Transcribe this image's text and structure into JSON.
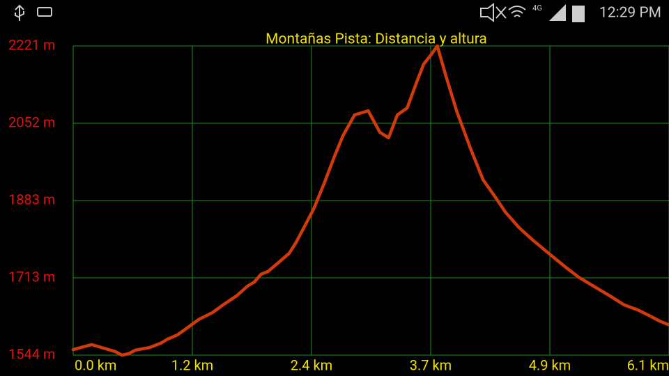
{
  "status_bar": {
    "network": "4G",
    "time": "12:29 PM"
  },
  "chart_data": {
    "type": "line",
    "title": "Montañas Pista: Distancia y altura",
    "x": [
      0,
      0.19,
      0.43,
      0.5,
      0.57,
      0.64,
      0.79,
      0.9,
      0.97,
      1.07,
      1.18,
      1.29,
      1.43,
      1.54,
      1.68,
      1.79,
      1.86,
      1.93,
      2.0,
      2.11,
      2.22,
      2.29,
      2.36,
      2.47,
      2.58,
      2.68,
      2.77,
      2.89,
      3.03,
      3.15,
      3.24,
      3.33,
      3.43,
      3.53,
      3.6,
      3.67,
      3.74,
      3.83,
      3.94,
      4.08,
      4.21,
      4.32,
      4.44,
      4.58,
      4.72,
      4.9,
      5.05,
      5.19,
      5.33,
      5.51,
      5.66,
      5.8,
      5.94,
      6.01,
      6.12
    ],
    "values": [
      1556,
      1567,
      1552,
      1544,
      1547,
      1555,
      1561,
      1570,
      1579,
      1588,
      1605,
      1622,
      1637,
      1654,
      1674,
      1695,
      1704,
      1721,
      1727,
      1747,
      1767,
      1791,
      1819,
      1864,
      1921,
      1977,
      2024,
      2070,
      2079,
      2032,
      2020,
      2070,
      2085,
      2143,
      2181,
      2200,
      2221,
      2154,
      2078,
      1997,
      1928,
      1895,
      1857,
      1823,
      1796,
      1764,
      1738,
      1715,
      1697,
      1674,
      1654,
      1643,
      1628,
      1620,
      1610
    ],
    "color": "#d23a0a",
    "xlim": [
      0,
      6.12
    ],
    "xticks": [
      {
        "value": 0,
        "label": "0.0 km"
      },
      {
        "value": 1.224,
        "label": "1.2 km"
      },
      {
        "value": 2.448,
        "label": "2.4 km"
      },
      {
        "value": 3.672,
        "label": "3.7 km"
      },
      {
        "value": 4.896,
        "label": "4.9 km"
      },
      {
        "value": 6.12,
        "label": "6.1 km"
      }
    ],
    "ylim": [
      1544,
      2221
    ],
    "yticks": [
      {
        "value": 1544,
        "label": "1544 m"
      },
      {
        "value": 1713.25,
        "label": "1713 m"
      },
      {
        "value": 1882.5,
        "label": "1883 m"
      },
      {
        "value": 2051.75,
        "label": "2052 m"
      },
      {
        "value": 2221,
        "label": "2221 m"
      }
    ],
    "grid": true,
    "grid_color": "#1f8f1f"
  }
}
